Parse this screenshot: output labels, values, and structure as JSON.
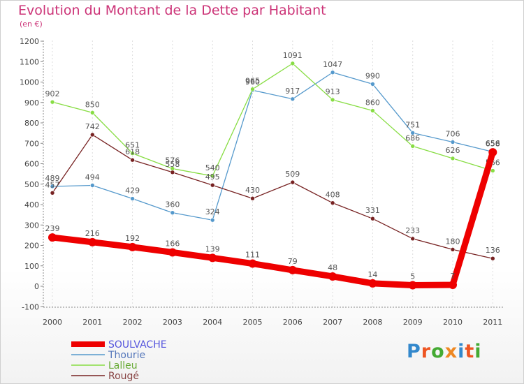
{
  "title": "Evolution du Montant de la Dette par Habitant",
  "subtitle": "(en €)",
  "logo": {
    "text": "Proxiti",
    "colors": [
      "#3388cc",
      "#ee5522",
      "#44aa33",
      "#ee8822",
      "#3388cc",
      "#ee5522",
      "#44aa33"
    ]
  },
  "chart_data": {
    "type": "line",
    "title": "Evolution du Montant de la Dette par Habitant",
    "subtitle": "(en €)",
    "x": [
      "2000",
      "2001",
      "2002",
      "2003",
      "2004",
      "2005",
      "2006",
      "2007",
      "2008",
      "2009",
      "2010",
      "2011"
    ],
    "ylim": [
      -100,
      1200
    ],
    "yticks": [
      "-100",
      "0",
      "100",
      "200",
      "300",
      "400",
      "500",
      "600",
      "700",
      "800",
      "900",
      "1000",
      "1100",
      "1200"
    ],
    "grid": "vertical dashed",
    "legend_position": "bottom-left",
    "series": [
      {
        "name": "SOULVACHE",
        "color": "#ee0000",
        "values": [
          239,
          216,
          192,
          166,
          139,
          111,
          79,
          48,
          14,
          5,
          7,
          656
        ],
        "labels": [
          "239",
          "216",
          "192",
          "166",
          "139",
          "111",
          "79",
          "48",
          "14",
          "5",
          "7",
          "656"
        ]
      },
      {
        "name": "Thourie",
        "color": "#5599cc",
        "values": [
          489,
          494,
          429,
          360,
          324,
          960,
          917,
          1047,
          990,
          751,
          706,
          658
        ],
        "labels": [
          "489",
          "494",
          "429",
          "360",
          "324",
          "960",
          "917",
          "1047",
          "990",
          "751",
          "706",
          "658"
        ]
      },
      {
        "name": "Lalleu",
        "color": "#88dd44",
        "values": [
          902,
          850,
          651,
          576,
          540,
          965,
          1091,
          913,
          860,
          686,
          626,
          566
        ],
        "labels": [
          "902",
          "850",
          "651",
          "576",
          "540",
          "965",
          "1091",
          "913",
          "860",
          "686",
          "626",
          "566"
        ]
      },
      {
        "name": "Rougé",
        "color": "#772222",
        "values": [
          457,
          742,
          618,
          558,
          495,
          430,
          509,
          408,
          331,
          233,
          180,
          136
        ],
        "labels": [
          "457",
          "742",
          "618",
          "558",
          "495",
          "430",
          "509",
          "408",
          "331",
          "233",
          "180",
          "136"
        ]
      }
    ]
  }
}
